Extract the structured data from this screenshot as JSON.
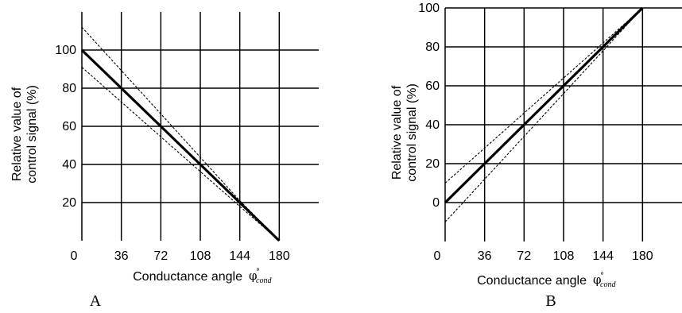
{
  "chart_data": [
    {
      "type": "line",
      "panel_label": "A",
      "xlabel": "Conductance angle",
      "xlabel_symbol": "φ",
      "xlabel_superscript": "°",
      "xlabel_subscript": "cond",
      "ylabel_lines": [
        "Relative value of",
        "control signal (%)"
      ],
      "xlim": [
        0,
        216
      ],
      "ylim": [
        0,
        120
      ],
      "x_ticks": [
        0,
        36,
        72,
        108,
        144,
        180
      ],
      "x_tick_labels": [
        "0",
        "36",
        "72",
        "108",
        "144",
        "180"
      ],
      "y_ticks": [
        20,
        40,
        60,
        80,
        100
      ],
      "y_tick_labels": [
        "20",
        "40",
        "60",
        "80",
        "100"
      ],
      "grid": true,
      "series": [
        {
          "style": "solid",
          "x": [
            0,
            180
          ],
          "y": [
            100,
            0
          ]
        },
        {
          "style": "dashed",
          "x": [
            0,
            144,
            180
          ],
          "y": [
            112,
            21,
            0
          ]
        },
        {
          "style": "dashed",
          "x": [
            0,
            144,
            180
          ],
          "y": [
            91,
            18,
            0
          ]
        }
      ]
    },
    {
      "type": "line",
      "panel_label": "B",
      "xlabel": "Conductance angle",
      "xlabel_symbol": "φ",
      "xlabel_superscript": "°",
      "xlabel_subscript": "cond",
      "ylabel_lines": [
        "Relative value of",
        "control signal (%)"
      ],
      "xlim": [
        0,
        216
      ],
      "ylim": [
        -20,
        100
      ],
      "x_ticks": [
        0,
        36,
        72,
        108,
        144,
        180
      ],
      "x_tick_labels": [
        "0",
        "36",
        "72",
        "108",
        "144",
        "180"
      ],
      "y_ticks": [
        0,
        20,
        40,
        60,
        80,
        100
      ],
      "y_tick_labels": [
        "0",
        "20",
        "40",
        "60",
        "80",
        "100"
      ],
      "grid": true,
      "series": [
        {
          "style": "solid",
          "x": [
            0,
            180
          ],
          "y": [
            0,
            100
          ]
        },
        {
          "style": "dashed",
          "x": [
            0,
            144,
            180
          ],
          "y": [
            10,
            82,
            100
          ]
        },
        {
          "style": "dashed",
          "x": [
            0,
            144,
            180
          ],
          "y": [
            -10,
            78,
            100
          ]
        }
      ]
    }
  ]
}
